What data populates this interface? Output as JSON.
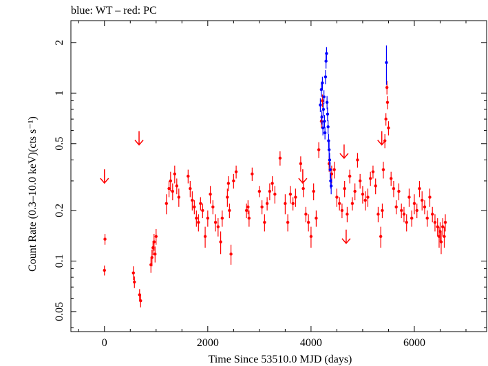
{
  "chart_data": {
    "type": "scatter",
    "title": "blue: WT – red: PC",
    "xlabel": "Time Since 53510.0 MJD (days)",
    "ylabel": "Count Rate (0.3–10.0 keV)(cts s⁻¹)",
    "xlim": [
      -650,
      7400
    ],
    "ylim": [
      0.038,
      2.7
    ],
    "yscale": "log",
    "grid": false,
    "x_ticks": [
      0,
      2000,
      4000,
      6000
    ],
    "x_tick_labels": [
      "0",
      "2000",
      "4000",
      "6000"
    ],
    "y_ticks": [
      0.05,
      0.1,
      0.2,
      0.5,
      1,
      2
    ],
    "y_tick_labels": [
      "0.05",
      "0.1",
      "0.2",
      "0.5",
      "1",
      "2"
    ],
    "colors": {
      "PC": "#ff0000",
      "WT": "#0000ff"
    },
    "series": [
      {
        "name": "PC",
        "points": [
          [
            0,
            0.088,
            0.006
          ],
          [
            10,
            0.135,
            0.01
          ],
          [
            560,
            0.085,
            0.008
          ],
          [
            580,
            0.075,
            0.006
          ],
          [
            680,
            0.063,
            0.005
          ],
          [
            700,
            0.058,
            0.005
          ],
          [
            900,
            0.095,
            0.01
          ],
          [
            920,
            0.105,
            0.012
          ],
          [
            940,
            0.12,
            0.012
          ],
          [
            960,
            0.13,
            0.015
          ],
          [
            980,
            0.11,
            0.012
          ],
          [
            1000,
            0.14,
            0.015
          ],
          [
            1200,
            0.22,
            0.03
          ],
          [
            1250,
            0.27,
            0.03
          ],
          [
            1280,
            0.3,
            0.04
          ],
          [
            1320,
            0.26,
            0.03
          ],
          [
            1360,
            0.33,
            0.04
          ],
          [
            1400,
            0.28,
            0.03
          ],
          [
            1440,
            0.24,
            0.03
          ],
          [
            1620,
            0.32,
            0.03
          ],
          [
            1660,
            0.27,
            0.03
          ],
          [
            1700,
            0.23,
            0.03
          ],
          [
            1740,
            0.21,
            0.02
          ],
          [
            1780,
            0.18,
            0.02
          ],
          [
            1820,
            0.17,
            0.02
          ],
          [
            1860,
            0.22,
            0.02
          ],
          [
            1900,
            0.2,
            0.02
          ],
          [
            1950,
            0.14,
            0.02
          ],
          [
            2000,
            0.18,
            0.02
          ],
          [
            2050,
            0.25,
            0.03
          ],
          [
            2100,
            0.21,
            0.02
          ],
          [
            2150,
            0.17,
            0.02
          ],
          [
            2200,
            0.16,
            0.02
          ],
          [
            2250,
            0.13,
            0.02
          ],
          [
            2280,
            0.18,
            0.02
          ],
          [
            2380,
            0.24,
            0.03
          ],
          [
            2400,
            0.29,
            0.03
          ],
          [
            2420,
            0.2,
            0.02
          ],
          [
            2450,
            0.11,
            0.015
          ],
          [
            2500,
            0.3,
            0.03
          ],
          [
            2550,
            0.34,
            0.03
          ],
          [
            2750,
            0.2,
            0.02
          ],
          [
            2780,
            0.21,
            0.02
          ],
          [
            2800,
            0.18,
            0.02
          ],
          [
            2860,
            0.33,
            0.03
          ],
          [
            3000,
            0.26,
            0.02
          ],
          [
            3050,
            0.21,
            0.02
          ],
          [
            3100,
            0.17,
            0.02
          ],
          [
            3150,
            0.22,
            0.02
          ],
          [
            3200,
            0.26,
            0.03
          ],
          [
            3250,
            0.29,
            0.03
          ],
          [
            3300,
            0.25,
            0.03
          ],
          [
            3400,
            0.41,
            0.04
          ],
          [
            3500,
            0.22,
            0.03
          ],
          [
            3550,
            0.17,
            0.02
          ],
          [
            3600,
            0.25,
            0.03
          ],
          [
            3650,
            0.22,
            0.02
          ],
          [
            3700,
            0.24,
            0.03
          ],
          [
            3800,
            0.38,
            0.04
          ],
          [
            3850,
            0.27,
            0.03
          ],
          [
            3900,
            0.19,
            0.02
          ],
          [
            3950,
            0.17,
            0.02
          ],
          [
            4000,
            0.14,
            0.02
          ],
          [
            4050,
            0.26,
            0.03
          ],
          [
            4100,
            0.18,
            0.02
          ],
          [
            4150,
            0.46,
            0.05
          ],
          [
            4200,
            0.68,
            0.06
          ],
          [
            4220,
            0.9,
            0.08
          ],
          [
            4350,
            0.38,
            0.04
          ],
          [
            4400,
            0.33,
            0.04
          ],
          [
            4450,
            0.35,
            0.04
          ],
          [
            4500,
            0.24,
            0.03
          ],
          [
            4550,
            0.22,
            0.02
          ],
          [
            4600,
            0.2,
            0.02
          ],
          [
            4650,
            0.27,
            0.03
          ],
          [
            4700,
            0.19,
            0.02
          ],
          [
            4750,
            0.32,
            0.03
          ],
          [
            4800,
            0.22,
            0.02
          ],
          [
            4850,
            0.26,
            0.03
          ],
          [
            4900,
            0.4,
            0.04
          ],
          [
            4950,
            0.3,
            0.03
          ],
          [
            5000,
            0.25,
            0.03
          ],
          [
            5050,
            0.23,
            0.03
          ],
          [
            5100,
            0.24,
            0.03
          ],
          [
            5150,
            0.31,
            0.03
          ],
          [
            5200,
            0.34,
            0.03
          ],
          [
            5250,
            0.28,
            0.03
          ],
          [
            5300,
            0.19,
            0.02
          ],
          [
            5350,
            0.14,
            0.02
          ],
          [
            5380,
            0.2,
            0.02
          ],
          [
            5400,
            0.35,
            0.04
          ],
          [
            5430,
            0.52,
            0.05
          ],
          [
            5450,
            0.7,
            0.06
          ],
          [
            5470,
            1.08,
            0.1
          ],
          [
            5480,
            0.88,
            0.08
          ],
          [
            5500,
            0.62,
            0.06
          ],
          [
            5550,
            0.31,
            0.03
          ],
          [
            5600,
            0.27,
            0.03
          ],
          [
            5650,
            0.21,
            0.02
          ],
          [
            5700,
            0.26,
            0.03
          ],
          [
            5750,
            0.2,
            0.02
          ],
          [
            5800,
            0.19,
            0.02
          ],
          [
            5850,
            0.17,
            0.02
          ],
          [
            5900,
            0.24,
            0.03
          ],
          [
            5950,
            0.18,
            0.02
          ],
          [
            6000,
            0.22,
            0.03
          ],
          [
            6050,
            0.2,
            0.02
          ],
          [
            6100,
            0.27,
            0.03
          ],
          [
            6150,
            0.23,
            0.03
          ],
          [
            6200,
            0.21,
            0.02
          ],
          [
            6250,
            0.18,
            0.02
          ],
          [
            6300,
            0.24,
            0.03
          ],
          [
            6350,
            0.19,
            0.02
          ],
          [
            6400,
            0.17,
            0.02
          ],
          [
            6450,
            0.16,
            0.02
          ],
          [
            6480,
            0.14,
            0.02
          ],
          [
            6500,
            0.15,
            0.02
          ],
          [
            6520,
            0.13,
            0.02
          ],
          [
            6550,
            0.16,
            0.02
          ],
          [
            6580,
            0.14,
            0.02
          ],
          [
            6600,
            0.17,
            0.02
          ]
        ],
        "upper_limits": [
          [
            0,
            0.32
          ],
          [
            670,
            0.54
          ],
          [
            3840,
            0.32
          ],
          [
            4640,
            0.45
          ],
          [
            4680,
            0.14
          ],
          [
            5370,
            0.54
          ]
        ]
      },
      {
        "name": "WT",
        "points": [
          [
            4180,
            0.85,
            0.08
          ],
          [
            4200,
            1.05,
            0.1
          ],
          [
            4210,
            0.72,
            0.07
          ],
          [
            4220,
            1.15,
            0.1
          ],
          [
            4230,
            0.62,
            0.06
          ],
          [
            4240,
            0.8,
            0.07
          ],
          [
            4250,
            0.95,
            0.09
          ],
          [
            4260,
            0.68,
            0.06
          ],
          [
            4270,
            0.58,
            0.05
          ],
          [
            4280,
            1.25,
            0.12
          ],
          [
            4290,
            1.55,
            0.15
          ],
          [
            4300,
            1.72,
            0.16
          ],
          [
            4310,
            0.88,
            0.08
          ],
          [
            4320,
            0.75,
            0.07
          ],
          [
            4330,
            0.63,
            0.06
          ],
          [
            4340,
            0.52,
            0.05
          ],
          [
            4350,
            0.46,
            0.05
          ],
          [
            4360,
            0.4,
            0.04
          ],
          [
            4370,
            0.35,
            0.04
          ],
          [
            4380,
            0.3,
            0.03
          ],
          [
            4390,
            0.28,
            0.03
          ],
          [
            5460,
            1.52,
            0.4
          ]
        ]
      }
    ]
  }
}
